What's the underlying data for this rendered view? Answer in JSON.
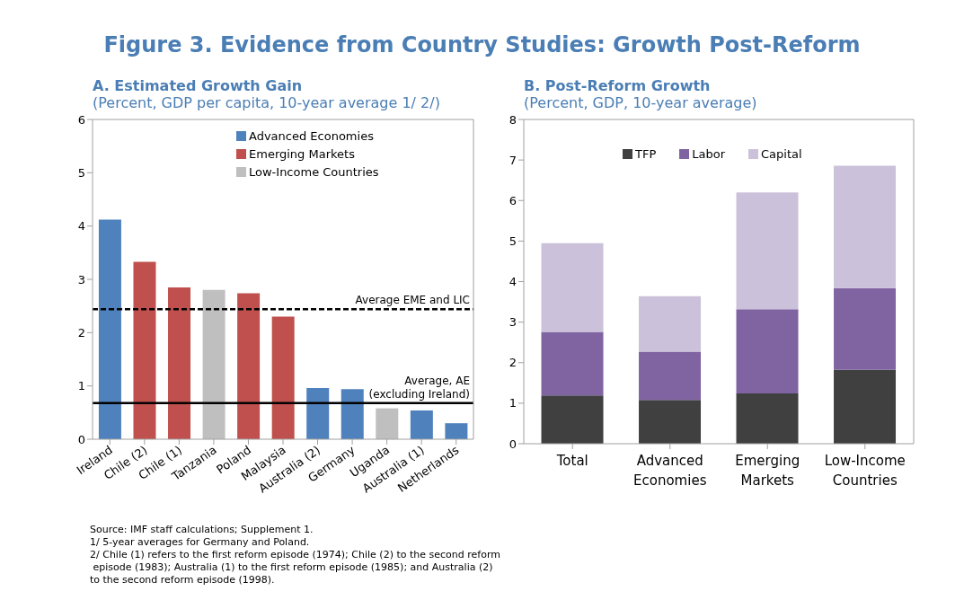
{
  "chart_data": [
    {
      "type": "bar",
      "title": "A. Estimated Growth Gain",
      "subtitle": "(Percent, GDP per capita, 10-year average 1/ 2/)",
      "categories": [
        "Ireland",
        "Chile (2)",
        "Chile (1)",
        "Tanzania",
        "Poland",
        "Malaysia",
        "Australia (2)",
        "Germany",
        "Uganda",
        "Australia (1)",
        "Netherlands"
      ],
      "series": [
        {
          "name": "Advanced Economies",
          "color": "#4f81bd",
          "values": [
            4.12,
            null,
            null,
            null,
            null,
            null,
            0.96,
            0.94,
            null,
            0.54,
            0.3
          ]
        },
        {
          "name": "Emerging Markets",
          "color": "#c0504d",
          "values": [
            null,
            3.33,
            2.85,
            null,
            2.74,
            2.3,
            null,
            null,
            null,
            null,
            null
          ]
        },
        {
          "name": "Low-Income Countries",
          "color": "#bfbfbf",
          "values": [
            null,
            null,
            null,
            2.8,
            null,
            null,
            null,
            null,
            0.58,
            null,
            null
          ]
        }
      ],
      "stacked": true,
      "ylim": [
        0,
        6
      ],
      "yticks": [
        0,
        1,
        2,
        3,
        4,
        5,
        6
      ],
      "legend": "top",
      "ref_lines": [
        {
          "axis": "y",
          "value": 2.44,
          "label": "Average EME and LIC",
          "line_style": "dashed",
          "color": "#000000"
        },
        {
          "axis": "y",
          "value": 0.68,
          "label": "Average, AE\n(excluding Ireland)",
          "line_style": "solid",
          "color": "#000000"
        }
      ],
      "annotations": [
        "Figure 3. Evidence from Country Studies: Growth Post-Reform",
        "Source: IMF staff calculations; Supplement 1.",
        "1/ 5-year averages for Germany and Poland.",
        "2/ Chile (1) refers to the first reform episode (1974); Chile (2) to the second reform\n episode (1983); Australia (1) to the first reform episode (1985); and Australia (2)\nto the second reform episode (1998)."
      ]
    },
    {
      "type": "bar",
      "title": "B. Post-Reform Growth",
      "subtitle": "(Percent, GDP, 10-year average)",
      "categories": [
        "Total",
        "Advanced Economies",
        "Emerging Markets",
        "Low-Income Countries"
      ],
      "series": [
        {
          "name": "TFP",
          "color": "#404040",
          "values": [
            1.19,
            1.08,
            1.24,
            1.82
          ]
        },
        {
          "name": "Labor",
          "color": "#8064a2",
          "values": [
            1.57,
            1.19,
            2.08,
            2.02
          ]
        },
        {
          "name": "Capital",
          "color": "#ccc1da",
          "values": [
            2.19,
            1.37,
            2.88,
            3.02
          ]
        }
      ],
      "stacked": true,
      "ylim": [
        0,
        8
      ],
      "yticks": [
        0,
        1,
        2,
        3,
        4,
        5,
        6,
        7,
        8
      ],
      "legend": "top"
    }
  ]
}
